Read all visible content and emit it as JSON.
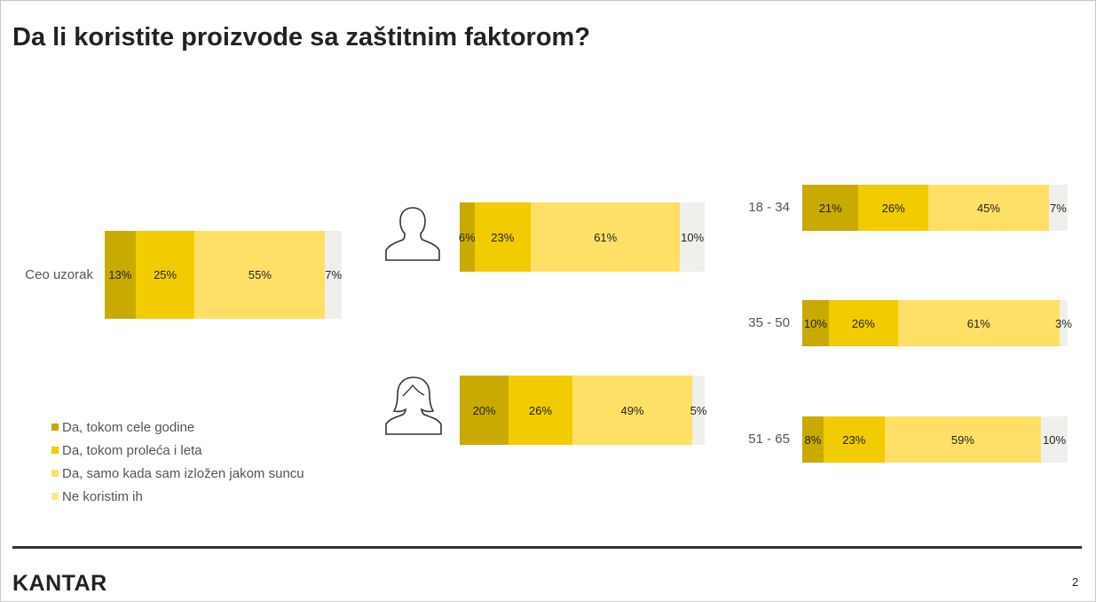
{
  "title": "Da li koristite proizvode sa zaštitnim faktorom?",
  "colors": {
    "da_cele_godine": "#c9aa00",
    "da_proleca_leta": "#f0cc00",
    "da_izlozen": "#ffe066",
    "ne_koristim": "#efefeb"
  },
  "legend": [
    {
      "label": "Da, tokom cele godine",
      "color": "#c9aa00"
    },
    {
      "label": "Da, tokom proleća i leta",
      "color": "#f0cc00"
    },
    {
      "label": "Da, samo kada sam izložen jakom suncu",
      "color": "#ffe066"
    },
    {
      "label": "Ne koristim ih",
      "color": "#ffe88a"
    }
  ],
  "chart_data": {
    "type": "bar",
    "orientation": "horizontal",
    "stacked": true,
    "series_names": [
      "Da, tokom cele godine",
      "Da, tokom proleća i leta",
      "Da, samo kada sam izložen jakom suncu",
      "Ne koristim ih"
    ],
    "groups": [
      {
        "key": "total",
        "label": "Ceo uzorak",
        "icon": "",
        "values": [
          13,
          25,
          55,
          7
        ],
        "labels": [
          "13%",
          "25%",
          "55%",
          "7%"
        ]
      },
      {
        "key": "male",
        "label": "",
        "icon": "male-person-icon",
        "values": [
          6,
          23,
          61,
          10
        ],
        "labels": [
          "6%",
          "23%",
          "61%",
          "10%"
        ]
      },
      {
        "key": "female",
        "label": "",
        "icon": "female-person-icon",
        "values": [
          20,
          26,
          49,
          5
        ],
        "labels": [
          "20%",
          "26%",
          "49%",
          "5%"
        ]
      },
      {
        "key": "age1",
        "label": "18 - 34",
        "icon": "",
        "values": [
          21,
          26,
          45,
          7
        ],
        "labels": [
          "21%",
          "26%",
          "45%",
          "7%"
        ]
      },
      {
        "key": "age2",
        "label": "35 - 50",
        "icon": "",
        "values": [
          10,
          26,
          61,
          3
        ],
        "labels": [
          "10%",
          "26%",
          "61%",
          "3%"
        ]
      },
      {
        "key": "age3",
        "label": "51 - 65",
        "icon": "",
        "values": [
          8,
          23,
          59,
          10
        ],
        "labels": [
          "8%",
          "23%",
          "59%",
          "10%"
        ]
      }
    ]
  },
  "footer": {
    "logo": "KANTAR",
    "page_number": "2"
  }
}
